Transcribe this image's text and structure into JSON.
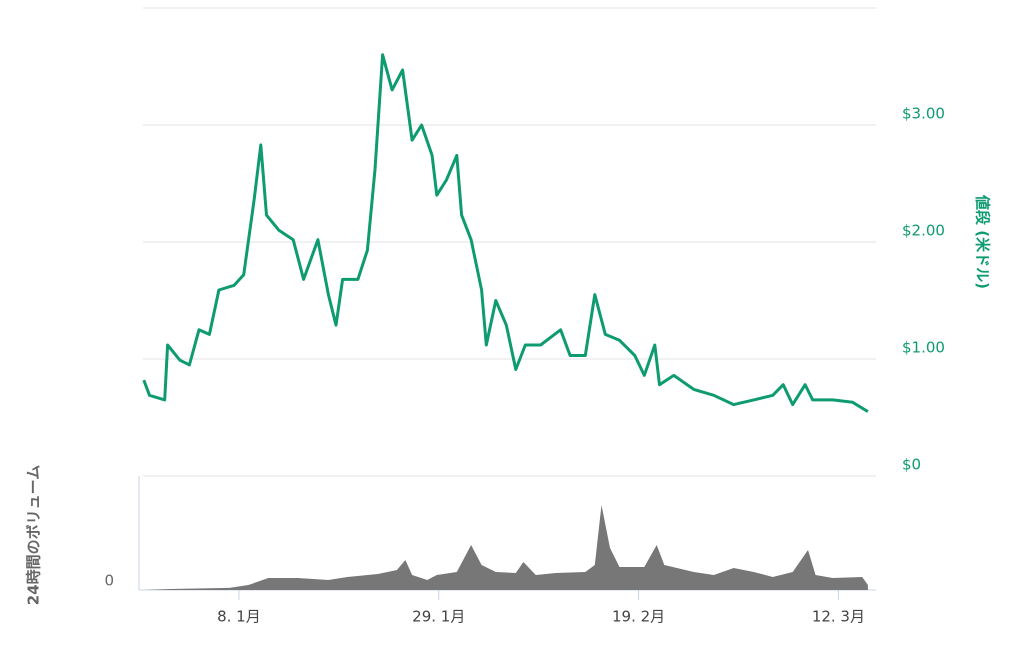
{
  "chart_data": [
    {
      "type": "line",
      "name": "price",
      "y_axis_label": "値段 (米ドル)",
      "color": "#0e9b70",
      "xlim": [
        -3.08,
        73.95
      ],
      "ylim": [
        0,
        4
      ],
      "yticks": [
        {
          "value": 0,
          "label": "$0"
        },
        {
          "value": 1,
          "label": "$1.00"
        },
        {
          "value": 2,
          "label": "$2.00"
        },
        {
          "value": 3,
          "label": "$3.00"
        }
      ],
      "grid": true,
      "x": [
        -3,
        -2.4,
        -0.8,
        -0.5,
        0.8,
        1.8,
        2.8,
        3.9,
        4.9,
        6.5,
        7.5,
        8.6,
        9.3,
        9.9,
        11.2,
        12.7,
        13.8,
        15.3,
        16.4,
        17.2,
        17.9,
        19.5,
        20.5,
        21.3,
        22.1,
        23.1,
        24.2,
        25.2,
        26.2,
        27.3,
        27.8,
        28.8,
        29.9,
        30.4,
        31.4,
        32.5,
        33,
        34,
        35.1,
        36.1,
        37.1,
        38.7,
        40.8,
        41.8,
        43.4,
        44.4,
        45.5,
        47,
        48.6,
        49.6,
        50.7,
        51.2,
        52.7,
        54.8,
        56.9,
        59,
        61.1,
        63.1,
        64.2,
        65.2,
        66.5,
        67.3,
        69.4,
        71.5,
        73.1
      ],
      "values": [
        0.82,
        0.69,
        0.65,
        1.12,
        0.99,
        0.95,
        1.25,
        1.21,
        1.59,
        1.63,
        1.72,
        2.36,
        2.83,
        2.23,
        2.1,
        2.02,
        1.68,
        2.02,
        1.55,
        1.29,
        1.68,
        1.68,
        1.93,
        2.62,
        3.6,
        3.3,
        3.47,
        2.87,
        3.0,
        2.74,
        2.4,
        2.53,
        2.74,
        2.23,
        2.02,
        1.59,
        1.12,
        1.5,
        1.29,
        0.91,
        1.12,
        1.12,
        1.25,
        1.03,
        1.03,
        1.55,
        1.21,
        1.16,
        1.03,
        0.86,
        1.12,
        0.78,
        0.86,
        0.74,
        0.69,
        0.61,
        0.65,
        0.69,
        0.78,
        0.61,
        0.78,
        0.65,
        0.65,
        0.63,
        0.55
      ]
    },
    {
      "type": "area",
      "name": "volume",
      "y_axis_label": "24時間のボリューム",
      "color": "#777777",
      "xlim": [
        -3.08,
        73.95
      ],
      "ylim": [
        0,
        100
      ],
      "yticks": [
        0
      ],
      "xticks": [
        {
          "value": 7,
          "label": "8. 1月"
        },
        {
          "value": 28,
          "label": "29. 1月"
        },
        {
          "value": 49,
          "label": "19. 2月"
        },
        {
          "value": 70,
          "label": "12. 3月"
        }
      ],
      "x": [
        -3,
        -0.3,
        6,
        8,
        10.1,
        13.2,
        16.4,
        18.4,
        21.6,
        23.6,
        24.5,
        25.2,
        26.8,
        27.8,
        29.9,
        31.4,
        32.5,
        34,
        36.1,
        36.9,
        38.2,
        40.3,
        43.4,
        44.4,
        45.1,
        46,
        47,
        49.6,
        50.9,
        51.7,
        54.8,
        56.9,
        59,
        61.1,
        63.1,
        65.2,
        66.8,
        67.6,
        69.4,
        72.5,
        73.1
      ],
      "values": [
        0,
        0.9,
        1.8,
        4.4,
        10.5,
        10.5,
        8.8,
        11.4,
        14,
        17.5,
        26.3,
        13.2,
        8.8,
        13.2,
        15.8,
        39.5,
        21.9,
        15.8,
        14.9,
        24.6,
        13.2,
        14.9,
        15.8,
        21.9,
        74.6,
        36.8,
        20.2,
        20.2,
        39.5,
        21.9,
        15.8,
        13.2,
        19.3,
        15.8,
        11.4,
        15.8,
        35.1,
        13.2,
        10.5,
        11.4,
        4.4
      ]
    }
  ]
}
